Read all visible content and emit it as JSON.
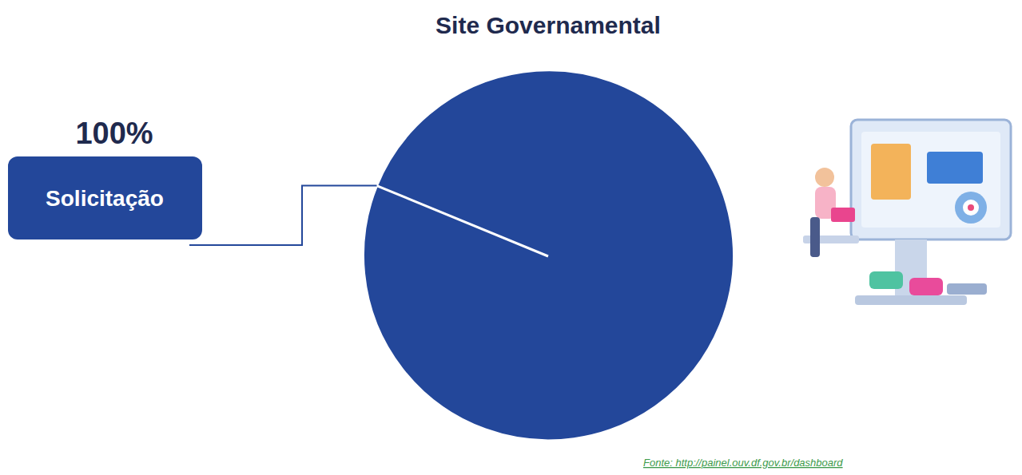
{
  "chart_data": {
    "type": "pie",
    "title": "Site Governamental",
    "categories": [
      "Solicitação"
    ],
    "values": [
      100
    ],
    "value_labels": [
      "100%"
    ],
    "data_labels": true,
    "color": "#23479a",
    "source": "Fonte: http://painel.ouv.df.gov.br/dashboard"
  }
}
